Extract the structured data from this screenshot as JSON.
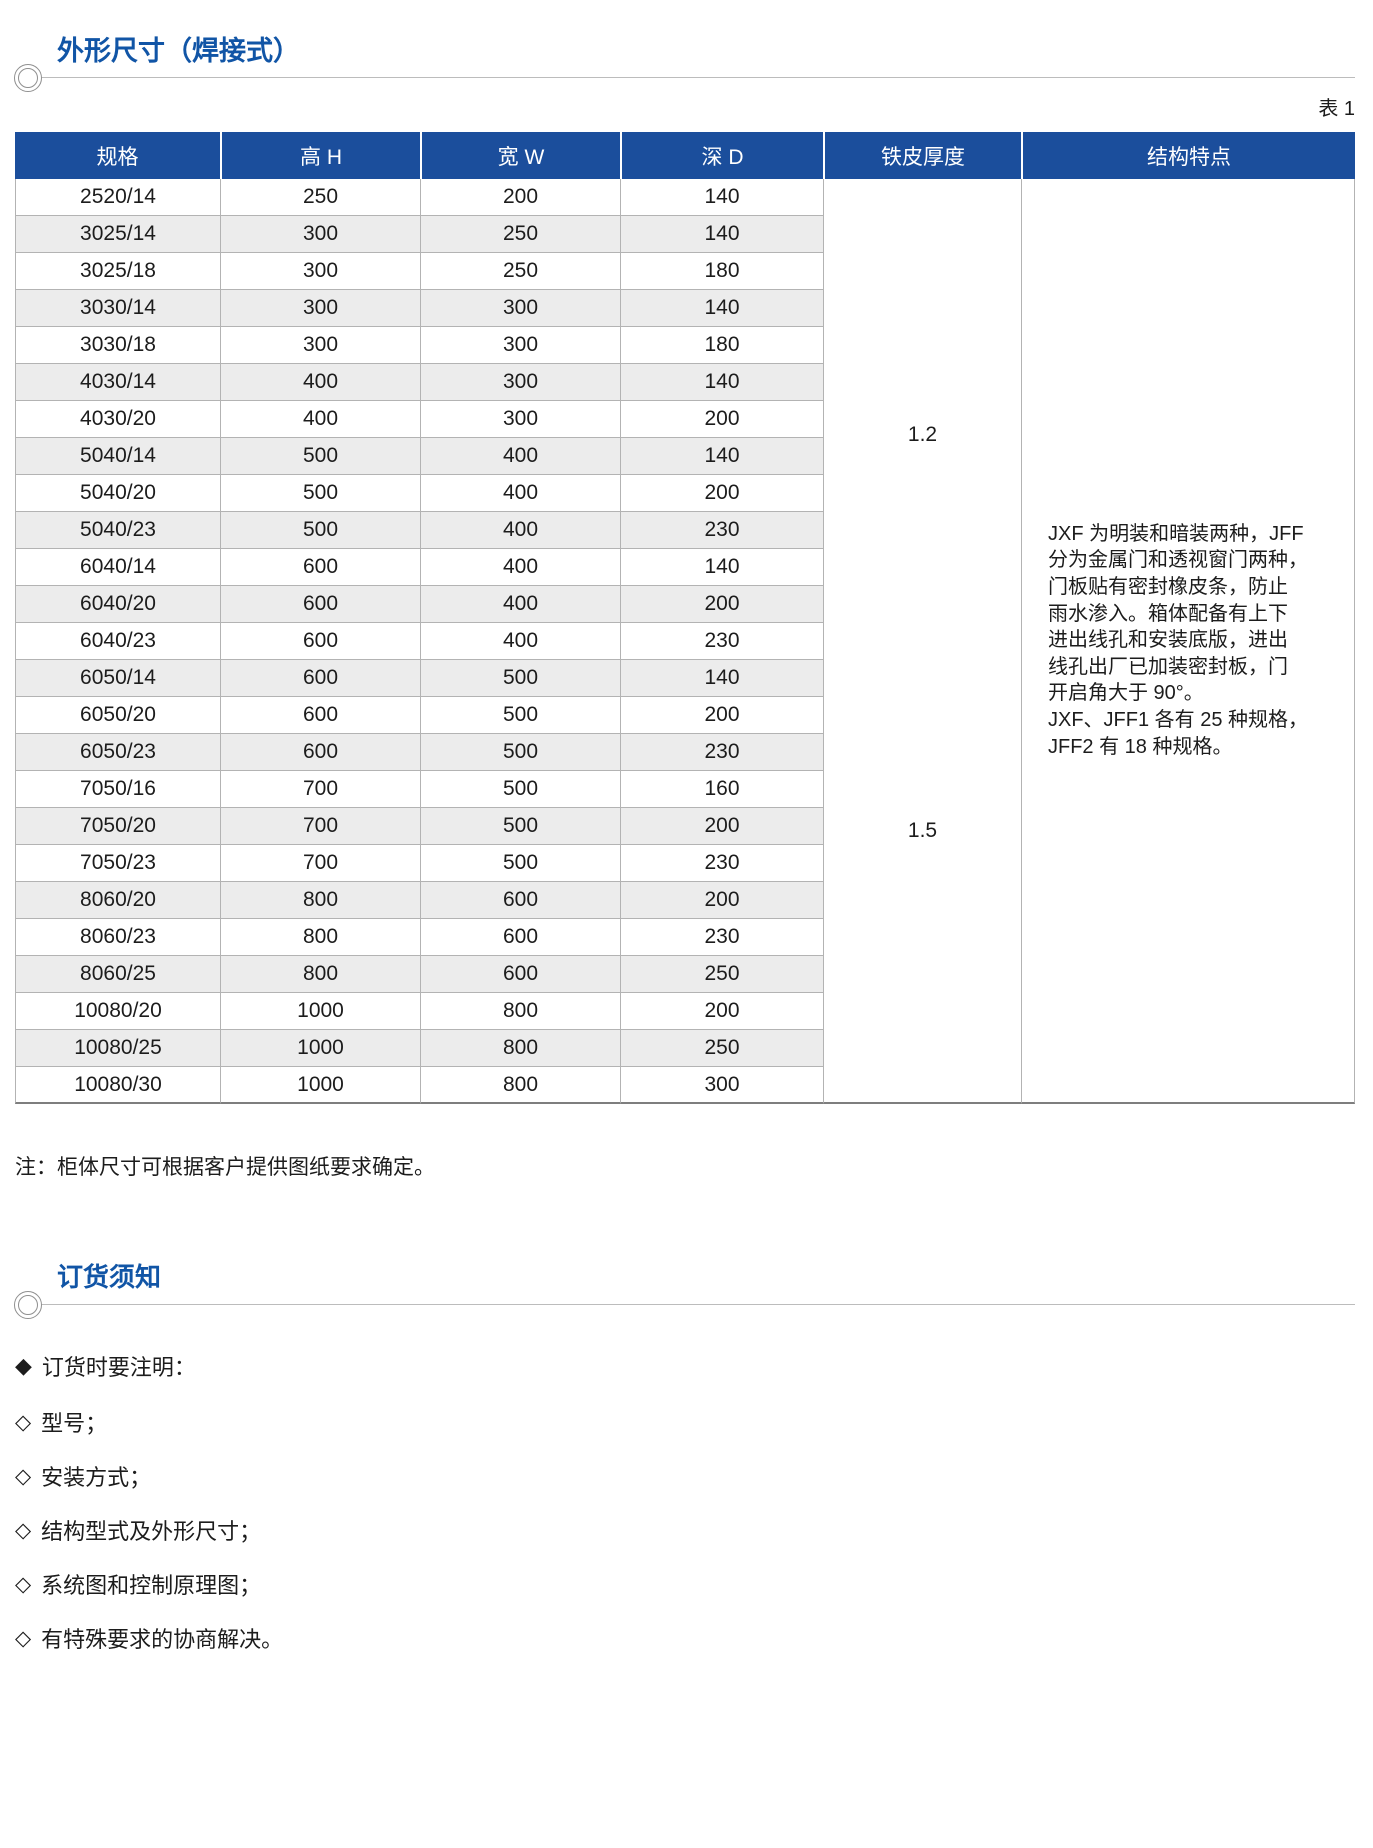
{
  "colors": {
    "accent_blue": "#1155a6",
    "table_header_bg": "#1b4e9c",
    "stripe_row": "#ececec"
  },
  "section_dimensions": {
    "title": "外形尺寸（焊接式）",
    "table_label": "表 1",
    "note": "注：柜体尺寸可根据客户提供图纸要求确定。",
    "table": {
      "headers": [
        "规格",
        "高 H",
        "宽 W",
        "深 D",
        "铁皮厚度",
        "结构特点"
      ],
      "rows": [
        [
          "2520/14",
          "250",
          "200",
          "140"
        ],
        [
          "3025/14",
          "300",
          "250",
          "140"
        ],
        [
          "3025/18",
          "300",
          "250",
          "180"
        ],
        [
          "3030/14",
          "300",
          "300",
          "140"
        ],
        [
          "3030/18",
          "300",
          "300",
          "180"
        ],
        [
          "4030/14",
          "400",
          "300",
          "140"
        ],
        [
          "4030/20",
          "400",
          "300",
          "200"
        ],
        [
          "5040/14",
          "500",
          "400",
          "140"
        ],
        [
          "5040/20",
          "500",
          "400",
          "200"
        ],
        [
          "5040/23",
          "500",
          "400",
          "230"
        ],
        [
          "6040/14",
          "600",
          "400",
          "140"
        ],
        [
          "6040/20",
          "600",
          "400",
          "200"
        ],
        [
          "6040/23",
          "600",
          "400",
          "230"
        ],
        [
          "6050/14",
          "600",
          "500",
          "140"
        ],
        [
          "6050/20",
          "600",
          "500",
          "200"
        ],
        [
          "6050/23",
          "600",
          "500",
          "230"
        ],
        [
          "7050/16",
          "700",
          "500",
          "160"
        ],
        [
          "7050/20",
          "700",
          "500",
          "200"
        ],
        [
          "7050/23",
          "700",
          "500",
          "230"
        ],
        [
          "8060/20",
          "800",
          "600",
          "200"
        ],
        [
          "8060/23",
          "800",
          "600",
          "230"
        ],
        [
          "8060/25",
          "800",
          "600",
          "250"
        ],
        [
          "10080/20",
          "1000",
          "800",
          "200"
        ],
        [
          "10080/25",
          "1000",
          "800",
          "250"
        ],
        [
          "10080/30",
          "1000",
          "800",
          "300"
        ]
      ],
      "thickness": [
        "1.2",
        "1.5"
      ],
      "features": "JXF 为明装和暗装两种，JFF\n分为金属门和透视窗门两种，\n门板贴有密封橡皮条，防止\n雨水渗入。箱体配备有上下\n进出线孔和安装底版，进出\n线孔出厂已加装密封板，门\n开启角大于 90°。\nJXF、JFF1 各有 25 种规格，\nJFF2 有 18 种规格。"
    }
  },
  "section_ordering": {
    "title": "订货须知",
    "heading": {
      "bullet": "◆",
      "text": "订货时要注明："
    },
    "items": [
      {
        "bullet": "◇",
        "text": "型号；"
      },
      {
        "bullet": "◇",
        "text": "安装方式；"
      },
      {
        "bullet": "◇",
        "text": "结构型式及外形尺寸；"
      },
      {
        "bullet": "◇",
        "text": "系统图和控制原理图；"
      },
      {
        "bullet": "◇",
        "text": "有特殊要求的协商解决。"
      }
    ]
  }
}
